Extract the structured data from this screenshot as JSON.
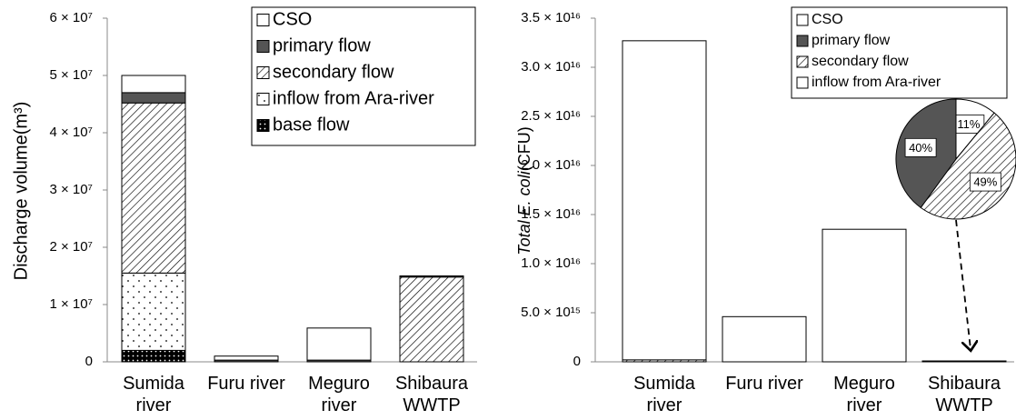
{
  "chart_data": [
    {
      "type": "bar",
      "stacked": true,
      "y_label": [
        "Discharge  volume(m³)"
      ],
      "categories": [
        "Sumida river",
        "Furu river",
        "Meguro river",
        "Shibaura WWTP"
      ],
      "series": [
        {
          "name": "CSO",
          "color": "#ffffff",
          "pattern": "solid",
          "values": [
            3000000,
            700000,
            5600000,
            0
          ]
        },
        {
          "name": "primary flow",
          "color": "#555555",
          "pattern": "solid",
          "values": [
            1800000,
            300000,
            300000,
            200000
          ]
        },
        {
          "name": "secondary flow",
          "color": "#ffffff",
          "pattern": "hatch",
          "values": [
            29700000,
            0,
            0,
            14800000
          ]
        },
        {
          "name": "inflow from Ara-river",
          "color": "#ffffff",
          "pattern": "dots",
          "values": [
            13500000,
            0,
            0,
            0
          ]
        },
        {
          "name": "base flow",
          "color": "#000000",
          "pattern": "dense-dots",
          "values": [
            2000000,
            0,
            0,
            0
          ]
        }
      ],
      "ylim": [
        0,
        60000000
      ],
      "yticks": [
        0,
        {
          "value": 10000000,
          "label": "1 × 10⁷"
        },
        {
          "value": 20000000,
          "label": "2 × 10⁷"
        },
        {
          "value": 30000000,
          "label": "3 × 10⁷"
        },
        {
          "value": 40000000,
          "label": "4 × 10⁷"
        },
        {
          "value": 50000000,
          "label": "5 × 10⁷"
        },
        {
          "value": 60000000,
          "label": "6 × 10⁷"
        }
      ],
      "legend": "upper right"
    },
    {
      "type": "bar",
      "stacked": true,
      "y_label": [
        "Total E. coli",
        "(CFU)"
      ],
      "categories": [
        "Sumida river",
        "Furu river",
        "Meguro river",
        "Shibaura WWTP"
      ],
      "series": [
        {
          "name": "CSO",
          "color": "#ffffff",
          "pattern": "solid",
          "values": [
            32500000000000000,
            4600000000000000,
            13500000000000000,
            0
          ]
        },
        {
          "name": "primary flow",
          "color": "#555555",
          "pattern": "solid",
          "values": [
            0,
            0,
            0,
            40000000000000
          ]
        },
        {
          "name": "secondary flow",
          "color": "#ffffff",
          "pattern": "hatch",
          "values": [
            200000000000000,
            0,
            0,
            50000000000000
          ]
        },
        {
          "name": "inflow from Ara-river",
          "color": "#ffffff",
          "pattern": "solid",
          "values": [
            0,
            0,
            0,
            0
          ]
        }
      ],
      "ylim": [
        0,
        35000000000000000
      ],
      "yticks": [
        0,
        {
          "value": 5000000000000000,
          "label": "5.0 × 10¹⁵"
        },
        {
          "value": 10000000000000000,
          "label": "1.0 × 10¹⁶"
        },
        {
          "value": 15000000000000000,
          "label": "1.5 × 10¹⁶"
        },
        {
          "value": 20000000000000000,
          "label": "2.0 × 10¹⁶"
        },
        {
          "value": 25000000000000000,
          "label": "2.5 × 10¹⁶"
        },
        {
          "value": 30000000000000000,
          "label": "3.0 × 10¹⁶"
        },
        {
          "value": 35000000000000000,
          "label": "3.5 × 10¹⁶"
        }
      ],
      "legend": "upper right"
    },
    {
      "type": "pie",
      "values": [
        11,
        49,
        40
      ],
      "value_labels": [
        "11%",
        "49%",
        "40%"
      ],
      "colors": [
        "#ffffff",
        "#ffffff",
        "#555555"
      ],
      "patterns": [
        "solid",
        "hatch",
        "solid"
      ]
    }
  ]
}
